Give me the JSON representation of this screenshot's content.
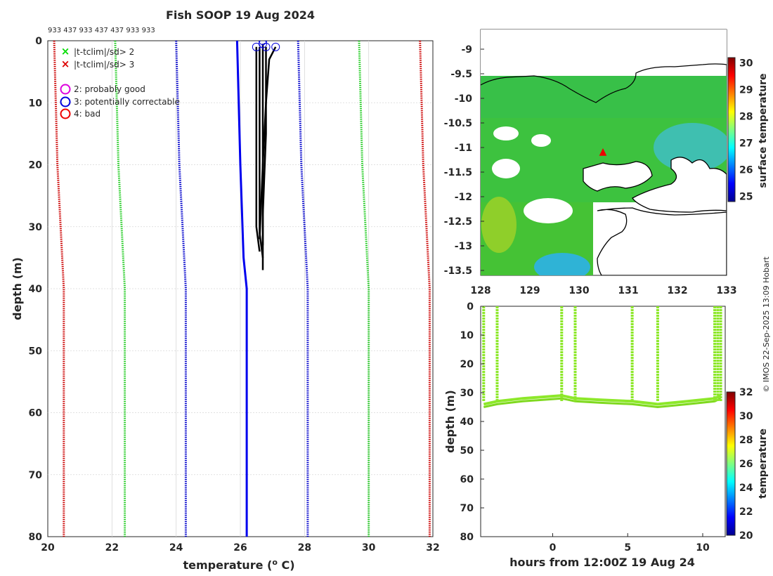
{
  "chart_data": [
    {
      "id": "profile",
      "type": "line",
      "title": "Fish SOOP 19 Aug 2024",
      "top_labels": "933 437 933 437 437 933 933",
      "xlabel": "temperature (",
      "xlabel_sup": "o",
      "xlabel_end": " C)",
      "ylabel": "depth (m)",
      "xlim": [
        20,
        32
      ],
      "ylim": [
        0,
        80
      ],
      "y_reversed": true,
      "xticks": [
        "20",
        "22",
        "24",
        "26",
        "28",
        "30",
        "32"
      ],
      "yticks": [
        "0",
        "10",
        "20",
        "30",
        "40",
        "50",
        "60",
        "70",
        "80"
      ],
      "grid": true,
      "legend": {
        "placement": "top-left",
        "items": [
          {
            "marker": "x",
            "color": "#00dd00",
            "label": "|t-tclim|/sd> 2"
          },
          {
            "marker": "x",
            "color": "#dd0000",
            "label": "|t-tclim|/sd> 3"
          },
          {
            "marker": "o",
            "color": "#dd00dd",
            "label": "2: probably good"
          },
          {
            "marker": "o",
            "color": "#0000dd",
            "label": "3: potentially correctable"
          },
          {
            "marker": "o",
            "color": "#ee0000",
            "label": "4: bad"
          }
        ]
      },
      "climatology_series": [
        {
          "name": "red-lower",
          "color": "#cc0000",
          "points": [
            [
              20.2,
              0
            ],
            [
              20.3,
              20
            ],
            [
              20.5,
              40
            ],
            [
              20.5,
              80
            ]
          ]
        },
        {
          "name": "green-lower",
          "color": "#22cc22",
          "points": [
            [
              22.1,
              0
            ],
            [
              22.2,
              20
            ],
            [
              22.4,
              40
            ],
            [
              22.4,
              80
            ]
          ]
        },
        {
          "name": "blue-lower",
          "color": "#0000cc",
          "points": [
            [
              24.0,
              0
            ],
            [
              24.1,
              20
            ],
            [
              24.3,
              40
            ],
            [
              24.3,
              80
            ]
          ]
        },
        {
          "name": "blue-upper",
          "color": "#0000cc",
          "points": [
            [
              27.8,
              0
            ],
            [
              27.9,
              20
            ],
            [
              28.1,
              40
            ],
            [
              28.1,
              80
            ]
          ]
        },
        {
          "name": "green-upper",
          "color": "#22cc22",
          "points": [
            [
              29.7,
              0
            ],
            [
              29.8,
              20
            ],
            [
              30.0,
              40
            ],
            [
              30.0,
              80
            ]
          ]
        },
        {
          "name": "red-upper",
          "color": "#cc0000",
          "points": [
            [
              31.6,
              0
            ],
            [
              31.7,
              20
            ],
            [
              31.9,
              40
            ],
            [
              31.9,
              80
            ]
          ]
        }
      ],
      "mean_profile": {
        "name": "mean",
        "color": "#0000ee",
        "points": [
          [
            25.9,
            0
          ],
          [
            26.0,
            20
          ],
          [
            26.1,
            35
          ],
          [
            26.2,
            40
          ],
          [
            26.2,
            80
          ]
        ]
      },
      "observed_profiles": [
        {
          "color": "#000000",
          "points": [
            [
              26.5,
              1
            ],
            [
              26.5,
              10
            ],
            [
              26.5,
              20
            ],
            [
              26.5,
              30
            ],
            [
              26.6,
              34
            ]
          ]
        },
        {
          "color": "#000000",
          "points": [
            [
              26.6,
              1
            ],
            [
              26.6,
              12
            ],
            [
              26.6,
              22
            ],
            [
              26.6,
              31
            ],
            [
              26.7,
              35
            ]
          ]
        },
        {
          "color": "#000000",
          "points": [
            [
              26.7,
              0.5
            ],
            [
              26.7,
              10
            ],
            [
              26.7,
              25
            ],
            [
              26.7,
              37
            ]
          ]
        },
        {
          "color": "#000000",
          "points": [
            [
              26.8,
              1
            ],
            [
              26.8,
              15
            ],
            [
              26.7,
              28
            ],
            [
              26.7,
              33
            ]
          ]
        },
        {
          "color": "#000000",
          "points": [
            [
              27.1,
              1
            ],
            [
              26.9,
              3
            ],
            [
              26.8,
              10
            ],
            [
              26.7,
              20
            ],
            [
              26.6,
              32
            ]
          ]
        }
      ],
      "flag_circles": [
        [
          26.5,
          1
        ],
        [
          26.7,
          0.5
        ],
        [
          26.7,
          0
        ],
        [
          26.8,
          1
        ],
        [
          27.1,
          1
        ]
      ]
    },
    {
      "id": "sst-map",
      "type": "heatmap",
      "xlim": [
        128,
        133
      ],
      "ylim": [
        -13.6,
        -8.6
      ],
      "xticks": [
        "128",
        "129",
        "130",
        "131",
        "132",
        "133"
      ],
      "yticks": [
        "-9",
        "-9.5",
        "-10",
        "-10.5",
        "-11",
        "-11.5",
        "-12",
        "-12.5",
        "-13",
        "-13.5"
      ],
      "marker": {
        "lon": 130.4,
        "lat": -11.05,
        "color": "#ee0000"
      },
      "colorbar": {
        "label": "surface temperature",
        "range": [
          25,
          30
        ],
        "ticks": [
          "25",
          "26",
          "27",
          "28",
          "29",
          "30"
        ]
      }
    },
    {
      "id": "depth-time",
      "type": "scatter",
      "xlabel": "hours from 12:00Z 19 Aug 24",
      "ylabel": "depth (m)",
      "xlim": [
        -4.8,
        11.5
      ],
      "ylim": [
        0,
        80
      ],
      "y_reversed": true,
      "xticks": [
        "0",
        "5",
        "10"
      ],
      "yticks": [
        "0",
        "10",
        "20",
        "30",
        "40",
        "50",
        "60",
        "70",
        "80"
      ],
      "casts": [
        -4.6,
        -3.7,
        0.6,
        1.5,
        5.3,
        7.0,
        10.8,
        11.0,
        11.2
      ],
      "bottom": [
        [
          -4.6,
          34
        ],
        [
          -3.7,
          33
        ],
        [
          -2.0,
          32
        ],
        [
          0.6,
          31
        ],
        [
          1.5,
          32
        ],
        [
          3.2,
          32.5
        ],
        [
          5.3,
          33
        ],
        [
          7.0,
          34
        ],
        [
          9.0,
          33
        ],
        [
          10.8,
          32
        ],
        [
          11.2,
          31
        ]
      ],
      "colorbar": {
        "label": "temperature",
        "range": [
          20,
          32
        ],
        "ticks": [
          "20",
          "22",
          "24",
          "26",
          "28",
          "30",
          "32"
        ]
      }
    }
  ],
  "credit": "© IMOS 22-Sep-2025 13:09 Hobart"
}
